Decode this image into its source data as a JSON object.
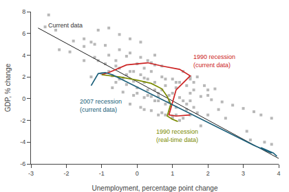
{
  "chart_data": {
    "type": "scatter",
    "xlabel": "Unemployment, percentage point change",
    "ylabel": "GDP, % change",
    "xlim": [
      -3,
      4
    ],
    "ylim": [
      -6,
      8
    ],
    "xticks": [
      -3,
      -2,
      -1,
      0,
      1,
      2,
      3,
      4
    ],
    "yticks": [
      -6,
      -4,
      -2,
      0,
      2,
      4,
      6,
      8
    ],
    "grid": false,
    "series": [
      {
        "type": "scatter",
        "marker": "square",
        "color": "#b8b8b8",
        "x": [
          -2.6,
          -2.3,
          -1.8,
          -1.5,
          -1.2,
          -2.5,
          -1.1,
          -0.5,
          -0.2,
          0.1,
          -1.5,
          -1.2,
          -0.9,
          -0.6,
          -0.3,
          0.0,
          0.3,
          0.5,
          -0.5,
          -0.2,
          0.1,
          0.4,
          0.7,
          -0.8,
          -0.5,
          -0.2,
          0.1,
          0.4,
          0.7,
          1.0,
          -1.0,
          -0.7,
          -0.4,
          -0.1,
          0.2,
          0.5,
          0.8,
          1.1,
          -0.6,
          -0.3,
          0.0,
          0.3,
          0.6,
          0.9,
          1.2,
          1.5,
          -0.4,
          -0.1,
          0.2,
          0.5,
          0.8,
          1.1,
          1.4,
          1.7,
          2.0,
          -0.2,
          0.1,
          0.4,
          0.7,
          1.0,
          1.3,
          1.5,
          1.8,
          2.1,
          2.4,
          2.7,
          3.0,
          3.3,
          3.5,
          3.8,
          3.6,
          3.8,
          3.2,
          0.2,
          0.6,
          1.2,
          1.6,
          1.9,
          2.2,
          -0.8,
          -1.1,
          -1.3,
          -0.3,
          0.5,
          0.2,
          -0.6,
          1.0,
          1.3,
          1.8,
          2.5,
          3.1,
          0.8,
          0.4,
          -1.3,
          0.7,
          -0.5,
          1.4,
          2.3,
          0.9,
          1.5,
          2.0,
          1.7,
          0.3,
          -0.1,
          1.1,
          1.6,
          0.0,
          -0.7,
          0.6,
          -0.9,
          -2.2,
          -1.9,
          -1.5,
          -0.8,
          1.3,
          1.5,
          0.5,
          1.2,
          0.8,
          1.0,
          1.5,
          1.6,
          2.0,
          0.3,
          1.1,
          0.6,
          0.2,
          1.4
        ],
        "values": [
          6.6,
          6.3,
          5.3,
          5.5,
          5.0,
          7.7,
          6.3,
          5.9,
          5.5,
          5.2,
          3.5,
          3.8,
          3.2,
          3.5,
          3.9,
          3.2,
          3.5,
          3.1,
          4.5,
          4.2,
          3.8,
          3.3,
          3.0,
          2.5,
          2.8,
          2.5,
          2.2,
          2.5,
          2.0,
          1.8,
          2.3,
          2.1,
          1.9,
          1.6,
          1.9,
          1.5,
          1.2,
          1.0,
          1.5,
          1.3,
          1.0,
          0.8,
          0.5,
          0.3,
          0.1,
          -0.2,
          0.6,
          0.3,
          0.1,
          -0.2,
          -0.5,
          -0.8,
          -1.0,
          -1.3,
          -1.5,
          -0.5,
          -0.8,
          -1.1,
          -1.3,
          -1.6,
          -1.8,
          0.5,
          0.2,
          -0.1,
          -0.3,
          -0.6,
          -0.9,
          -1.2,
          -1.5,
          -1.8,
          -4.0,
          -4.2,
          -3.8,
          -1.0,
          -1.5,
          -2.0,
          1.5,
          1.2,
          0.9,
          4.0,
          3.5,
          5.2,
          2.2,
          4.0,
          2.8,
          3.0,
          0.5,
          -0.2,
          -2.5,
          -1.8,
          -3.0,
          1.8,
          0.2,
          2.0,
          0.8,
          1.8,
          -0.5,
          -1.0,
          -0.3,
          1.8,
          0.8,
          2.0,
          1.8,
          2.5,
          1.5,
          -0.8,
          0.5,
          1.0,
          -0.2,
          4.9,
          4.5,
          4.3,
          4.8,
          6.5,
          2.5,
          2.0,
          0.8,
          1.5,
          -1.5,
          -1.8,
          -1.5,
          0.8,
          0.3,
          0.3,
          -1.5,
          0.2,
          1.5,
          1.2
        ]
      },
      {
        "type": "line",
        "line_style": "solid",
        "color": "#1a1a1a",
        "x": [
          -2.8,
          4.0
        ],
        "values": [
          6.5,
          -5.5
        ]
      },
      {
        "type": "line",
        "line_style": "solid",
        "marker": "arrow",
        "color": "#cc2222",
        "x": [
          -1.0,
          -0.8,
          -0.3,
          0.3,
          0.7,
          1.2,
          1.5,
          1.1,
          0.9,
          1.1,
          1.5
        ],
        "values": [
          2.2,
          2.4,
          3.1,
          3.3,
          3.0,
          2.7,
          2.1,
          0.8,
          -1.5,
          -1.6,
          -1.5
        ]
      },
      {
        "type": "line",
        "line_style": "solid",
        "marker": "arrow",
        "color": "#7a8a00",
        "x": [
          -1.0,
          -0.5,
          0.0,
          0.4,
          0.7,
          0.85,
          0.95,
          0.9,
          0.85,
          1.0,
          1.15
        ],
        "values": [
          2.2,
          2.0,
          1.7,
          1.4,
          0.9,
          0.2,
          -0.5,
          -1.1,
          -1.6,
          -1.9,
          -2.1
        ]
      },
      {
        "type": "line",
        "line_style": "solid",
        "marker": "arrow",
        "color": "#1a5f7a",
        "x": [
          -1.1,
          -1.3,
          -1.1,
          -0.9,
          -0.7,
          3.3,
          3.8,
          3.5,
          3.85,
          3.95
        ],
        "values": [
          2.3,
          1.2,
          2.3,
          2.4,
          2.2,
          -4.3,
          -5.0,
          -4.5,
          -5.0,
          -5.3
        ]
      }
    ],
    "annotations": [
      {
        "text": "Current data",
        "x": -2.55,
        "y": 7.2,
        "color": "#333333"
      },
      {
        "text": "1990 recession\n(current data)",
        "x": 1.55,
        "y": 4.3,
        "color": "#cc2222"
      },
      {
        "text": "1990 recession\n(real-time data)",
        "x": 0.5,
        "y": -2.6,
        "color": "#7a8a00"
      },
      {
        "text": "2007 recession\n(current data)",
        "x": -1.65,
        "y": 0.2,
        "color": "#1a5f7a"
      }
    ]
  }
}
